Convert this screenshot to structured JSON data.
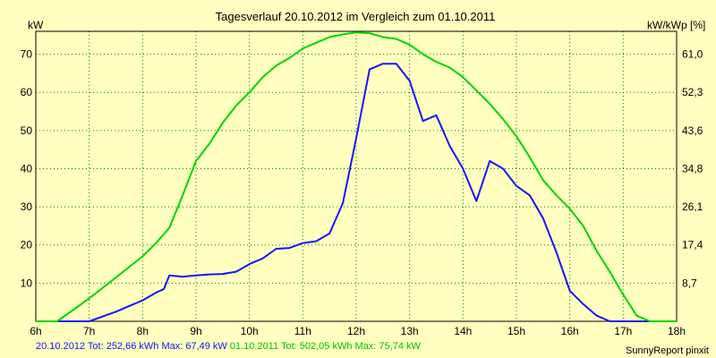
{
  "chart_data": {
    "type": "line",
    "title": "Tagesverlauf 20.10.2012 im Vergleich zum 01.10.2011",
    "ylabel_left": "kW",
    "ylabel_right": "kW/kWp [%]",
    "x_ticks": [
      "6h",
      "7h",
      "8h",
      "9h",
      "10h",
      "11h",
      "12h",
      "13h",
      "14h",
      "15h",
      "16h",
      "17h",
      "18h"
    ],
    "y_ticks_left": [
      "10",
      "20",
      "30",
      "40",
      "50",
      "60",
      "70"
    ],
    "y_ticks_right": [
      "8,7",
      "17,4",
      "26,1",
      "34,8",
      "43,6",
      "52,3",
      "61,0"
    ],
    "xlim": [
      6,
      18
    ],
    "ylim": [
      0,
      76
    ],
    "grid": true,
    "series": [
      {
        "name": "20.10.2012",
        "color": "#1515ff",
        "x": [
          6.0,
          6.5,
          7.0,
          7.5,
          8.0,
          8.25,
          8.4,
          8.5,
          8.75,
          9.0,
          9.25,
          9.5,
          9.75,
          10.0,
          10.25,
          10.5,
          10.75,
          11.0,
          11.25,
          11.5,
          11.75,
          12.0,
          12.25,
          12.5,
          12.75,
          13.0,
          13.25,
          13.5,
          13.75,
          14.0,
          14.25,
          14.5,
          14.75,
          15.0,
          15.25,
          15.5,
          15.75,
          16.0,
          16.25,
          16.5,
          16.75,
          17.0,
          17.5
        ],
        "values": [
          0,
          0,
          0,
          2.5,
          5.5,
          7.5,
          8.5,
          12,
          11.7,
          12,
          12.3,
          12.4,
          13,
          15,
          16.5,
          19,
          19.2,
          20.5,
          21,
          23,
          31,
          48,
          66,
          67.5,
          67.5,
          63,
          52.5,
          54,
          46,
          40,
          31.5,
          42,
          40,
          35.5,
          33,
          27,
          18,
          8,
          4.5,
          1.5,
          0,
          0,
          0
        ]
      },
      {
        "name": "01.10.2011",
        "color": "#00d400",
        "x": [
          6.0,
          6.4,
          7.0,
          7.5,
          8.0,
          8.25,
          8.5,
          8.75,
          9.0,
          9.25,
          9.5,
          9.75,
          10.0,
          10.25,
          10.5,
          10.75,
          11.0,
          11.25,
          11.5,
          11.75,
          12.0,
          12.25,
          12.5,
          12.75,
          13.0,
          13.25,
          13.5,
          13.75,
          14.0,
          14.25,
          14.5,
          14.75,
          15.0,
          15.25,
          15.5,
          15.75,
          16.0,
          16.25,
          16.5,
          16.75,
          17.0,
          17.25,
          17.5,
          18.0
        ],
        "values": [
          0,
          0,
          6,
          11.5,
          17,
          20.5,
          24.5,
          33,
          42,
          46.5,
          52,
          56.5,
          60,
          64,
          67,
          69,
          71.5,
          73,
          74.5,
          75.2,
          75.7,
          75.5,
          74.5,
          74,
          72.5,
          70,
          68,
          66.5,
          64,
          60.5,
          57,
          53,
          48.5,
          43,
          37,
          33,
          29.5,
          25,
          18.5,
          13,
          7,
          1.5,
          0,
          0
        ]
      }
    ]
  },
  "footer": {
    "series1": "20.10.2012 Tot: 252,66 kWh Max: 67,49 kW",
    "series2": "01.10.2011 Tot: 502,05 kWh Max: 75,74 kW",
    "brand": "SunnyReport pinxit"
  }
}
